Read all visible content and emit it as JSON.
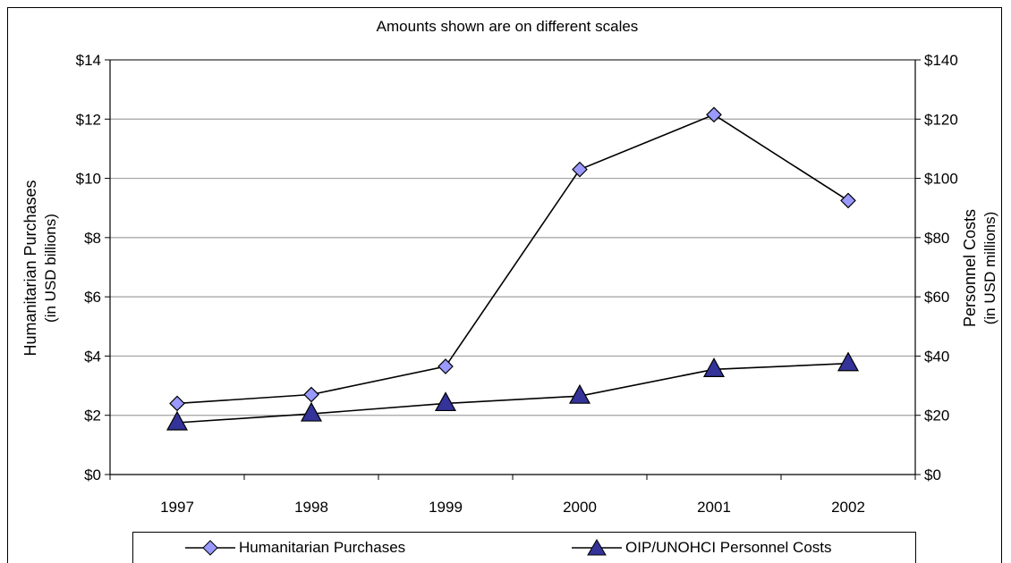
{
  "chart_data": {
    "type": "line",
    "title": "Amounts shown are on different scales",
    "categories": [
      "1997",
      "1998",
      "1999",
      "2000",
      "2001",
      "2002"
    ],
    "y_left": {
      "label_line1": "Humanitarian Purchases",
      "label_line2": "(in USD billions)",
      "range": [
        0,
        14
      ],
      "ticks": [
        0,
        2,
        4,
        6,
        8,
        10,
        12,
        14
      ],
      "tick_labels": [
        "$0",
        "$2",
        "$4",
        "$6",
        "$8",
        "$10",
        "$12",
        "$14"
      ]
    },
    "y_right": {
      "label_line1": "Personnel Costs",
      "label_line2": "(in USD millions)",
      "range": [
        0,
        140
      ],
      "ticks": [
        0,
        20,
        40,
        60,
        80,
        100,
        120,
        140
      ],
      "tick_labels": [
        "$0",
        "$20",
        "$40",
        "$60",
        "$80",
        "$100",
        "$120",
        "$140"
      ]
    },
    "series": [
      {
        "name": "Humanitarian Purchases",
        "axis": "left",
        "marker": "diamond",
        "color": "#9999ff",
        "values": [
          2.4,
          2.7,
          3.65,
          10.3,
          12.15,
          9.25
        ]
      },
      {
        "name": "OIP/UNOHCI Personnel Costs",
        "axis": "right",
        "marker": "triangle",
        "color": "#333399",
        "values": [
          17.5,
          20.5,
          24,
          26.5,
          35.5,
          37.5
        ]
      }
    ],
    "grid": true,
    "legend_position": "bottom"
  }
}
